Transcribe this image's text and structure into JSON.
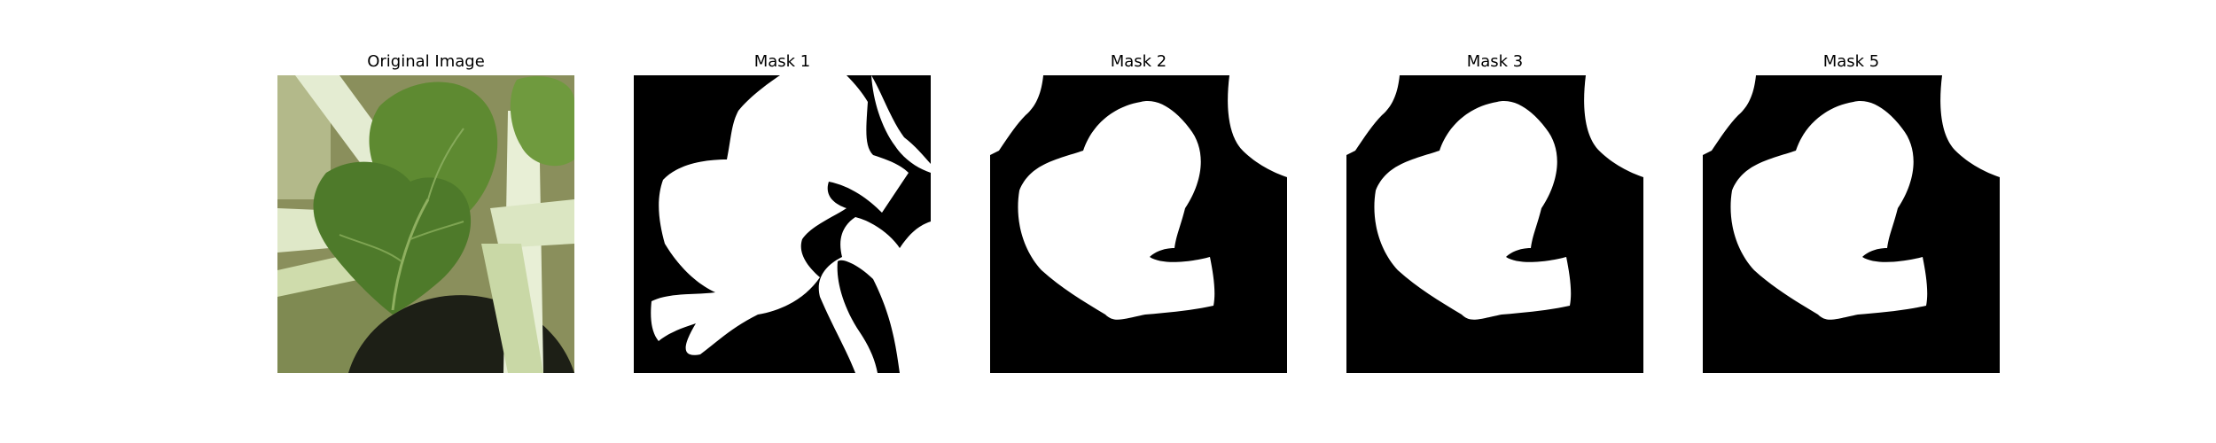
{
  "figure": {
    "panels": [
      {
        "title": "Original Image"
      },
      {
        "title": "Mask 1"
      },
      {
        "title": "Mask 2"
      },
      {
        "title": "Mask 3"
      },
      {
        "title": "Mask 5"
      }
    ]
  },
  "colors": {
    "background": "#ffffff",
    "mask_background": "#000000",
    "mask_foreground": "#ffffff",
    "leaf_dark": "#4e7a2a",
    "leaf_mid": "#6f9a3e",
    "stem_light": "#e4ecd2",
    "stem_mid": "#c9d8a6",
    "backdrop": "#8a8f5c"
  }
}
